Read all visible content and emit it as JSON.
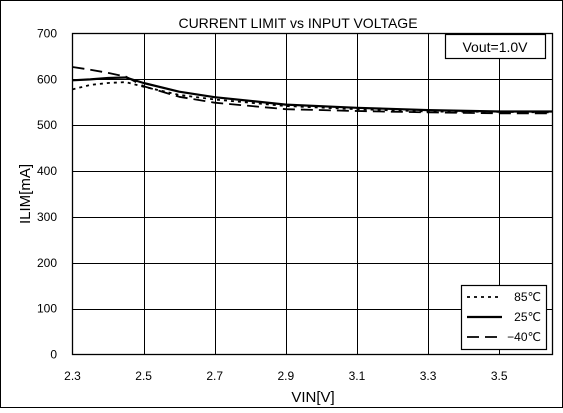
{
  "chart_data": {
    "type": "line",
    "title": "CURRENT LIMIT vs INPUT VOLTAGE",
    "annotation": "Vout=1.0V",
    "xlabel": "VIN[V]",
    "ylabel": "ILIM[mA]",
    "xlim": [
      2.3,
      3.65
    ],
    "ylim": [
      0,
      700
    ],
    "xticks": [
      2.3,
      2.5,
      2.7,
      2.9,
      3.1,
      3.3,
      3.5
    ],
    "xtick_labels": [
      "2.3",
      "2.5",
      "2.7",
      "2.9",
      "3.1",
      "3.3",
      "3.5"
    ],
    "yticks": [
      0,
      100,
      200,
      300,
      400,
      500,
      600,
      700
    ],
    "ytick_labels": [
      "0",
      "100",
      "200",
      "300",
      "400",
      "500",
      "600",
      "700"
    ],
    "grid": true,
    "legend_position": "bottom-right",
    "series": [
      {
        "name": "85℃",
        "dash": "dotted",
        "points": [
          [
            2.3,
            578
          ],
          [
            2.35,
            588
          ],
          [
            2.4,
            592
          ],
          [
            2.45,
            594
          ],
          [
            2.5,
            584
          ],
          [
            2.6,
            566
          ],
          [
            2.7,
            556
          ],
          [
            2.9,
            542
          ],
          [
            3.1,
            535
          ],
          [
            3.3,
            530
          ],
          [
            3.5,
            529
          ],
          [
            3.65,
            528
          ]
        ]
      },
      {
        "name": "25℃",
        "dash": "solid",
        "points": [
          [
            2.3,
            598
          ],
          [
            2.35,
            600
          ],
          [
            2.4,
            603
          ],
          [
            2.45,
            604
          ],
          [
            2.5,
            592
          ],
          [
            2.6,
            573
          ],
          [
            2.7,
            561
          ],
          [
            2.9,
            545
          ],
          [
            3.1,
            538
          ],
          [
            3.3,
            533
          ],
          [
            3.5,
            530
          ],
          [
            3.65,
            530
          ]
        ]
      },
      {
        "name": "−40℃",
        "dash": "dashed",
        "points": [
          [
            2.3,
            627
          ],
          [
            2.35,
            621
          ],
          [
            2.4,
            614
          ],
          [
            2.45,
            606
          ],
          [
            2.5,
            585
          ],
          [
            2.6,
            562
          ],
          [
            2.7,
            549
          ],
          [
            2.9,
            535
          ],
          [
            3.1,
            531
          ],
          [
            3.3,
            528
          ],
          [
            3.5,
            526
          ],
          [
            3.65,
            526
          ]
        ]
      }
    ]
  }
}
